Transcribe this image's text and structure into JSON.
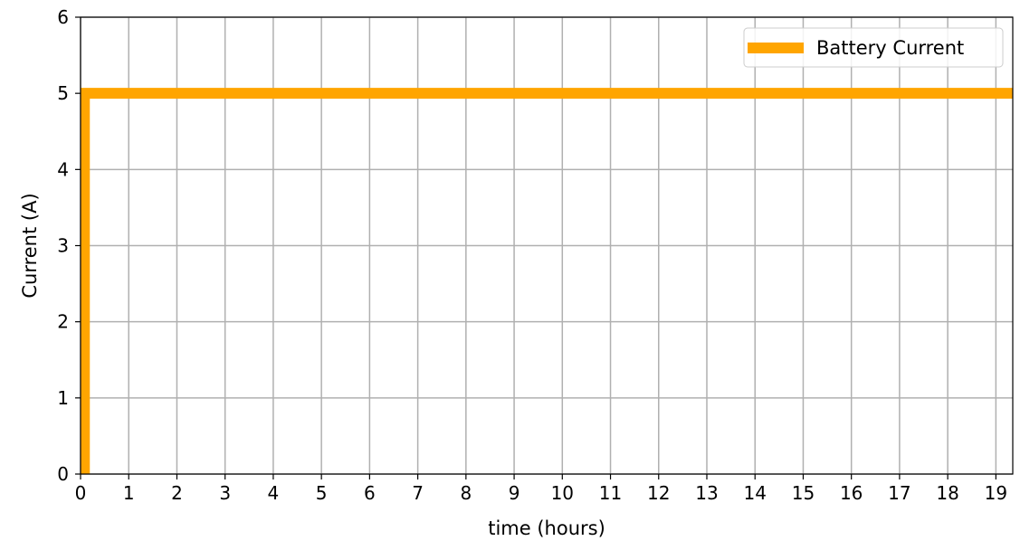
{
  "chart_data": {
    "type": "line",
    "title": "",
    "xlabel": "time (hours)",
    "ylabel": "Current (A)",
    "xlim": [
      0,
      19.35
    ],
    "ylim": [
      0,
      6
    ],
    "x_ticks": [
      0,
      1,
      2,
      3,
      4,
      5,
      6,
      7,
      8,
      9,
      10,
      11,
      12,
      13,
      14,
      15,
      16,
      17,
      18,
      19
    ],
    "y_ticks": [
      0,
      1,
      2,
      3,
      4,
      5,
      6
    ],
    "grid": true,
    "legend": {
      "placement": "top-right"
    },
    "series": [
      {
        "name": "Battery Current",
        "color": "#ffa500",
        "x": [
          0.08,
          0.08,
          19.35
        ],
        "y": [
          0,
          5,
          5
        ]
      }
    ]
  }
}
